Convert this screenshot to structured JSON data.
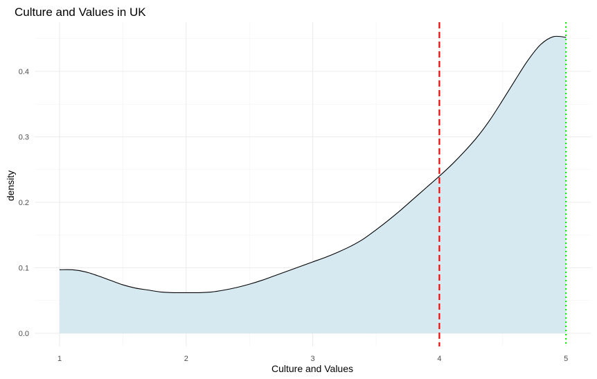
{
  "chart_data": {
    "type": "area",
    "title": "Culture and Values in UK",
    "xlabel": "Culture and Values",
    "ylabel": "density",
    "xlim": [
      1,
      5
    ],
    "ylim": [
      0,
      0.45
    ],
    "x_ticks": [
      1,
      2,
      3,
      4,
      5
    ],
    "y_ticks": [
      0.0,
      0.1,
      0.2,
      0.3,
      0.4
    ],
    "x_tick_labels": [
      "1",
      "2",
      "3",
      "4",
      "5"
    ],
    "y_tick_labels": [
      "0.0",
      "0.1",
      "0.2",
      "0.3",
      "0.4"
    ],
    "grid": true,
    "fill_color": "#d6e9f1",
    "line_color": "#000000",
    "series": [
      {
        "x": [
          1.0,
          1.1,
          1.2,
          1.3,
          1.4,
          1.5,
          1.6,
          1.7,
          1.8,
          1.9,
          2.0,
          2.1,
          2.2,
          2.3,
          2.4,
          2.5,
          2.6,
          2.7,
          2.8,
          2.9,
          3.0,
          3.1,
          3.2,
          3.3,
          3.4,
          3.5,
          3.6,
          3.7,
          3.8,
          3.9,
          4.0,
          4.1,
          4.2,
          4.3,
          4.4,
          4.5,
          4.6,
          4.7,
          4.8,
          4.9,
          5.0
        ],
        "y": [
          0.097,
          0.097,
          0.094,
          0.088,
          0.081,
          0.074,
          0.069,
          0.066,
          0.063,
          0.062,
          0.062,
          0.062,
          0.063,
          0.066,
          0.07,
          0.075,
          0.081,
          0.088,
          0.095,
          0.102,
          0.109,
          0.116,
          0.124,
          0.133,
          0.144,
          0.158,
          0.173,
          0.189,
          0.206,
          0.223,
          0.24,
          0.258,
          0.278,
          0.3,
          0.326,
          0.356,
          0.387,
          0.417,
          0.441,
          0.453,
          0.452
        ]
      }
    ],
    "reference_lines": [
      {
        "x": 4.0,
        "color": "#ff0000",
        "style": "dashed"
      },
      {
        "x": 5.0,
        "color": "#00ee00",
        "style": "dotted"
      }
    ]
  }
}
